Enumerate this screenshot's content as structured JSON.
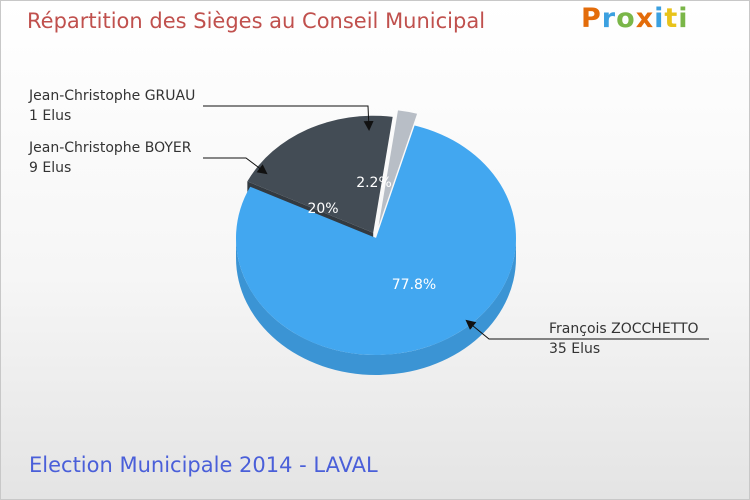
{
  "title": "Répartition des Sièges au Conseil Municipal",
  "footer": "Election Municipale 2014 - LAVAL",
  "logo": {
    "letters": [
      "P",
      "r",
      "o",
      "x",
      "i",
      "t",
      "i"
    ],
    "colors": [
      "#e36c0a",
      "#3ba0e0",
      "#7ab648",
      "#e36c0a",
      "#3ba0e0",
      "#e8c31a",
      "#7ab648"
    ]
  },
  "chart_data": {
    "type": "pie",
    "title": "Répartition des Sièges au Conseil Municipal",
    "slices": [
      {
        "name": "François ZOCCHETTO",
        "detail": "35 Elus",
        "value": 35,
        "percent_label": "77.8%",
        "color": "#42a7f0",
        "side_color": "#3b94d4"
      },
      {
        "name": "Jean-Christophe BOYER",
        "detail": "9 Elus",
        "value": 9,
        "percent_label": "20%",
        "color": "#434c55",
        "side_color": "#333a41"
      },
      {
        "name": "Jean-Christophe GRUAU",
        "detail": "1 Elus",
        "value": 1,
        "percent_label": "2.2%",
        "color": "#b8bec6",
        "side_color": "#a4aab2"
      }
    ]
  }
}
